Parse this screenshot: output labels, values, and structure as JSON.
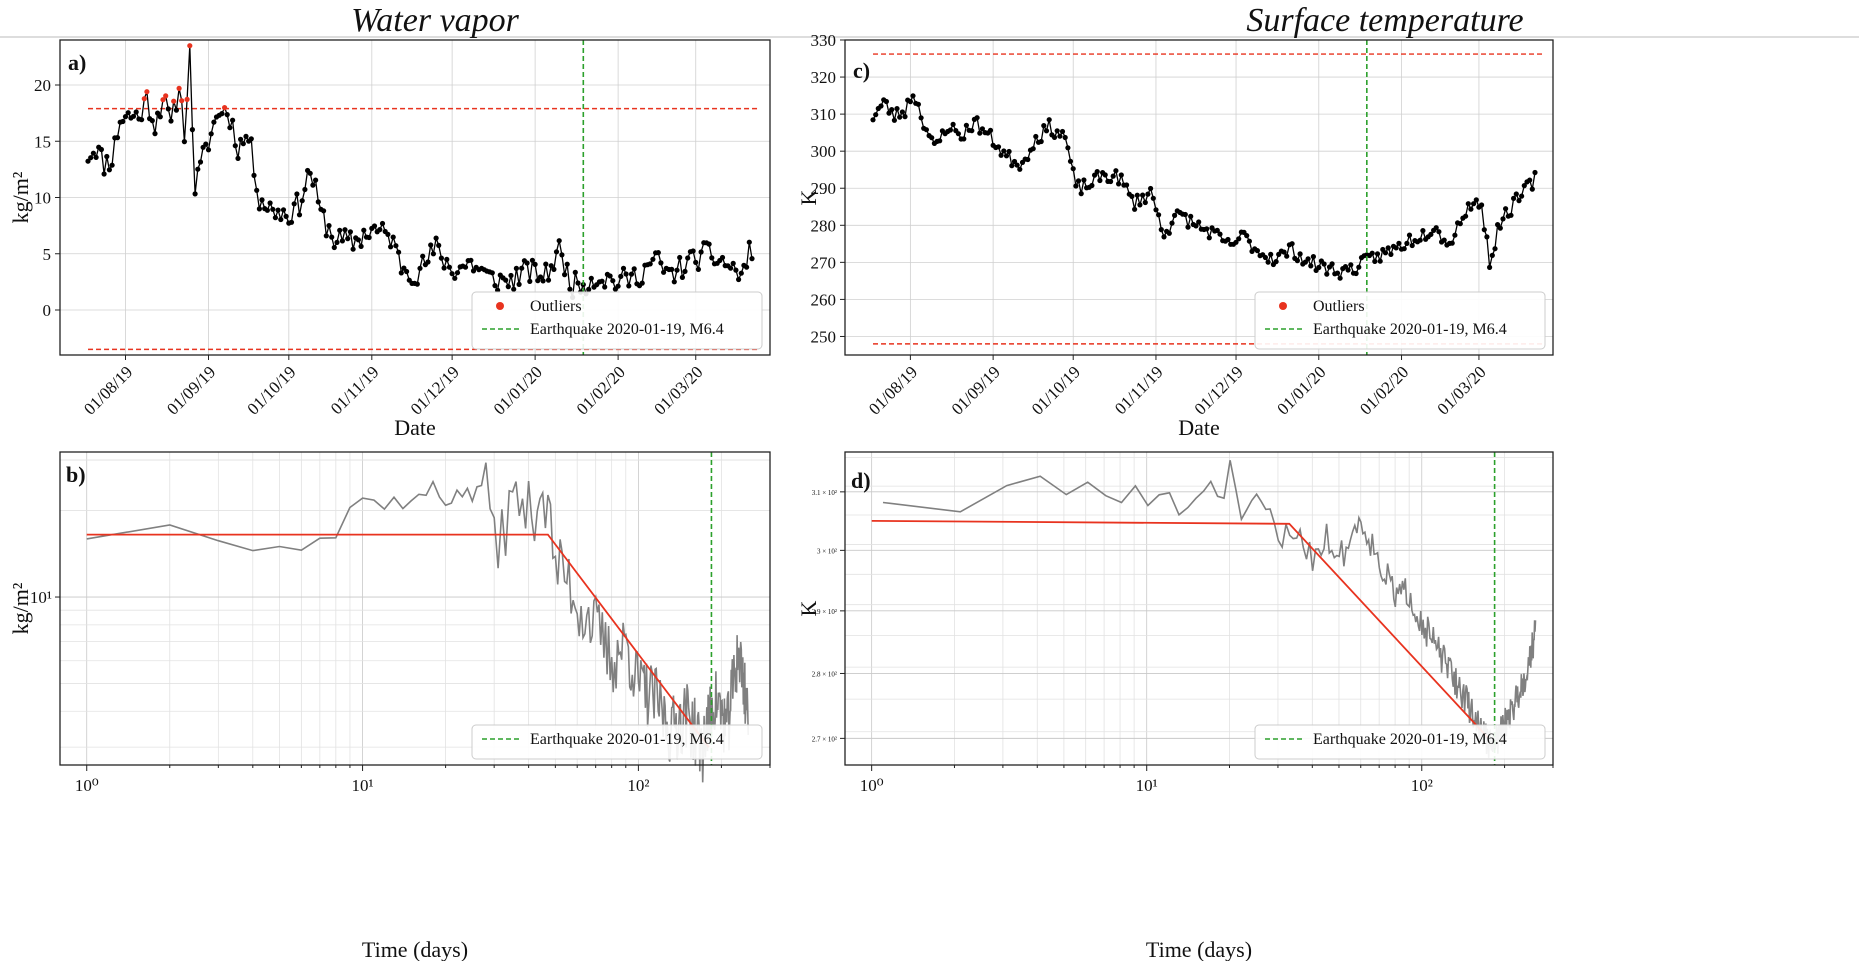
{
  "figure": {
    "titles": {
      "left": "Water vapor",
      "right": "Surface temperature"
    },
    "legend": {
      "outliers": "Outliers",
      "earthquake": "Earthquake 2020-01-19, M6.4"
    },
    "colors": {
      "series": "#000000",
      "loglog": "#808080",
      "threshold": "#e8331f",
      "fit": "#e8331f",
      "quake": "#2ca02c",
      "grid": "#d0d0d0"
    }
  },
  "chart_data": [
    {
      "id": "a",
      "panel_label": "a)",
      "type": "line",
      "title": "Water vapor",
      "xlabel": "Date",
      "ylabel": "kg/m²",
      "x_range": [
        "2019-07-15",
        "2020-03-25"
      ],
      "ylim": [
        -4,
        24
      ],
      "yticks": [
        0,
        5,
        10,
        15,
        20
      ],
      "ytick_labels": [
        "0",
        "5",
        "10",
        "15",
        "20"
      ],
      "xtick_dates": [
        "2019-08-01",
        "2019-09-01",
        "2019-10-01",
        "2019-11-01",
        "2019-12-01",
        "2020-01-01",
        "2020-02-01",
        "2020-03-01"
      ],
      "xtick_labels": [
        "01/08/19",
        "01/09/19",
        "01/10/19",
        "01/11/19",
        "01/12/19",
        "01/01/20",
        "01/02/20",
        "01/03/20"
      ],
      "threshold_upper": 17.9,
      "threshold_lower": -3.5,
      "quake_date": "2020-01-19",
      "keypoints": [
        [
          "2019-07-18",
          13.8
        ],
        [
          "2019-07-21",
          14.5
        ],
        [
          "2019-07-24",
          13.0
        ],
        [
          "2019-07-27",
          13.5
        ],
        [
          "2019-07-30",
          17.0
        ],
        [
          "2019-08-03",
          17.3
        ],
        [
          "2019-08-06",
          17.2
        ],
        [
          "2019-08-09",
          18.8
        ],
        [
          "2019-08-12",
          16.5
        ],
        [
          "2019-08-15",
          19.0
        ],
        [
          "2019-08-18",
          16.3
        ],
        [
          "2019-08-21",
          20.0
        ],
        [
          "2019-08-23",
          16.0
        ],
        [
          "2019-08-25",
          22.7
        ],
        [
          "2019-08-27",
          10.8
        ],
        [
          "2019-08-30",
          13.5
        ],
        [
          "2019-09-03",
          16.5
        ],
        [
          "2019-09-06",
          18.0
        ],
        [
          "2019-09-09",
          17.2
        ],
        [
          "2019-09-12",
          14.5
        ],
        [
          "2019-09-16",
          15.5
        ],
        [
          "2019-09-20",
          10.0
        ],
        [
          "2019-09-24",
          9.0
        ],
        [
          "2019-10-01",
          8.5
        ],
        [
          "2019-10-05",
          9.5
        ],
        [
          "2019-10-09",
          12.5
        ],
        [
          "2019-10-13",
          8.5
        ],
        [
          "2019-10-18",
          6.3
        ],
        [
          "2019-10-25",
          6.0
        ],
        [
          "2019-11-01",
          7.2
        ],
        [
          "2019-11-08",
          6.5
        ],
        [
          "2019-11-12",
          4.0
        ],
        [
          "2019-11-18",
          3.2
        ],
        [
          "2019-11-25",
          5.5
        ],
        [
          "2019-12-01",
          3.5
        ],
        [
          "2019-12-08",
          4.2
        ],
        [
          "2019-12-15",
          2.8
        ],
        [
          "2019-12-22",
          2.5
        ],
        [
          "2019-12-29",
          3.5
        ],
        [
          "2020-01-05",
          3.0
        ],
        [
          "2020-01-10",
          5.3
        ],
        [
          "2020-01-15",
          2.2
        ],
        [
          "2020-01-20",
          2.5
        ],
        [
          "2020-01-25",
          3.0
        ],
        [
          "2020-02-01",
          2.5
        ],
        [
          "2020-02-08",
          3.0
        ],
        [
          "2020-02-15",
          4.5
        ],
        [
          "2020-02-20",
          3.0
        ],
        [
          "2020-02-27",
          4.2
        ],
        [
          "2020-03-05",
          5.0
        ],
        [
          "2020-03-12",
          4.2
        ],
        [
          "2020-03-18",
          3.0
        ],
        [
          "2020-03-22",
          5.6
        ]
      ]
    },
    {
      "id": "c",
      "panel_label": "c)",
      "type": "line",
      "title": "Surface temperature",
      "xlabel": "Date",
      "ylabel": "K",
      "x_range": [
        "2019-07-15",
        "2020-03-25"
      ],
      "ylim": [
        245,
        330
      ],
      "yticks": [
        250,
        260,
        270,
        280,
        290,
        300,
        310,
        320,
        330
      ],
      "ytick_labels": [
        "250",
        "260",
        "270",
        "280",
        "290",
        "300",
        "310",
        "320",
        "330"
      ],
      "xtick_dates": [
        "2019-08-01",
        "2019-09-01",
        "2019-10-01",
        "2019-11-01",
        "2019-12-01",
        "2020-01-01",
        "2020-02-01",
        "2020-03-01"
      ],
      "xtick_labels": [
        "01/08/19",
        "01/09/19",
        "01/10/19",
        "01/11/19",
        "01/12/19",
        "01/01/20",
        "01/02/20",
        "01/03/20"
      ],
      "threshold_upper": 326.2,
      "threshold_lower": 248.0,
      "quake_date": "2020-01-19",
      "keypoints": [
        [
          "2019-07-18",
          309.5
        ],
        [
          "2019-07-22",
          313.0
        ],
        [
          "2019-07-26",
          309.5
        ],
        [
          "2019-07-30",
          311.0
        ],
        [
          "2019-08-02",
          316.0
        ],
        [
          "2019-08-06",
          308.0
        ],
        [
          "2019-08-10",
          300.5
        ],
        [
          "2019-08-15",
          307.0
        ],
        [
          "2019-08-20",
          304.0
        ],
        [
          "2019-08-25",
          308.0
        ],
        [
          "2019-09-01",
          303.0
        ],
        [
          "2019-09-06",
          298.5
        ],
        [
          "2019-09-12",
          296.5
        ],
        [
          "2019-09-16",
          302.5
        ],
        [
          "2019-09-22",
          306.5
        ],
        [
          "2019-09-28",
          304.0
        ],
        [
          "2019-10-02",
          290.0
        ],
        [
          "2019-10-06",
          290.5
        ],
        [
          "2019-10-12",
          293.5
        ],
        [
          "2019-10-18",
          293.0
        ],
        [
          "2019-10-24",
          286.0
        ],
        [
          "2019-10-30",
          289.0
        ],
        [
          "2019-11-04",
          278.0
        ],
        [
          "2019-11-10",
          283.0
        ],
        [
          "2019-11-16",
          280.0
        ],
        [
          "2019-11-22",
          278.0
        ],
        [
          "2019-11-28",
          274.5
        ],
        [
          "2019-12-04",
          277.0
        ],
        [
          "2019-12-10",
          272.5
        ],
        [
          "2019-12-16",
          271.0
        ],
        [
          "2019-12-22",
          273.5
        ],
        [
          "2019-12-28",
          270.0
        ],
        [
          "2020-01-04",
          268.5
        ],
        [
          "2020-01-10",
          267.5
        ],
        [
          "2020-01-16",
          269.0
        ],
        [
          "2020-01-22",
          271.5
        ],
        [
          "2020-01-28",
          273.0
        ],
        [
          "2020-02-04",
          276.0
        ],
        [
          "2020-02-10",
          278.0
        ],
        [
          "2020-02-14",
          280.5
        ],
        [
          "2020-02-18",
          274.0
        ],
        [
          "2020-02-22",
          280.0
        ],
        [
          "2020-02-26",
          285.0
        ],
        [
          "2020-03-02",
          286.0
        ],
        [
          "2020-03-05",
          270.0
        ],
        [
          "2020-03-09",
          281.0
        ],
        [
          "2020-03-15",
          286.5
        ],
        [
          "2020-03-22",
          292.5
        ]
      ]
    },
    {
      "id": "b",
      "panel_label": "b)",
      "type": "line",
      "scale": "log-log",
      "xlabel": "Time (days)",
      "ylabel": "kg/m²",
      "xlim": [
        0.8,
        300
      ],
      "xticks": [
        1,
        10,
        100
      ],
      "xtick_labels": [
        "10⁰",
        "10¹",
        "10²"
      ],
      "ylim": [
        2.6,
        32
      ],
      "yticks": [
        10
      ],
      "ytick_labels": [
        "10¹"
      ],
      "quake_day": 184,
      "fit": [
        [
          1,
          16.5
        ],
        [
          47,
          16.5
        ],
        [
          180,
          3.0
        ]
      ],
      "keypoints": [
        [
          1,
          16.5
        ],
        [
          2,
          17.5
        ],
        [
          3,
          16.5
        ],
        [
          4,
          15.5
        ],
        [
          5,
          16.0
        ],
        [
          6,
          15.0
        ],
        [
          7,
          16.5
        ],
        [
          8,
          16.0
        ],
        [
          9,
          21.0
        ],
        [
          10,
          21.5
        ],
        [
          12,
          21.5
        ],
        [
          14,
          21.5
        ],
        [
          16,
          22.0
        ],
        [
          18,
          24.0
        ],
        [
          20,
          21.0
        ],
        [
          22,
          24.0
        ],
        [
          25,
          22.0
        ],
        [
          28,
          27.5
        ],
        [
          30,
          15.0
        ],
        [
          33,
          19.0
        ],
        [
          36,
          22.0
        ],
        [
          40,
          20.0
        ],
        [
          45,
          24.0
        ],
        [
          50,
          13.0
        ],
        [
          55,
          12.0
        ],
        [
          60,
          9.5
        ],
        [
          70,
          8.0
        ],
        [
          80,
          6.0
        ],
        [
          90,
          7.0
        ],
        [
          100,
          5.0
        ],
        [
          115,
          4.5
        ],
        [
          130,
          3.5
        ],
        [
          150,
          4.0
        ],
        [
          170,
          3.0
        ],
        [
          190,
          4.5
        ],
        [
          210,
          3.5
        ],
        [
          230,
          6.5
        ],
        [
          250,
          4.0
        ]
      ]
    },
    {
      "id": "d",
      "panel_label": "d)",
      "type": "line",
      "scale": "log-log",
      "xlabel": "Time (days)",
      "ylabel": "K",
      "xlim": [
        0.8,
        300
      ],
      "xticks": [
        1,
        10,
        100
      ],
      "xtick_labels": [
        "10⁰",
        "10¹",
        "10²"
      ],
      "ylim": [
        266,
        317
      ],
      "yticks": [
        270,
        280,
        290,
        300,
        310
      ],
      "ytick_labels": [
        "2.7 × 10²",
        "2.8 × 10²",
        "2.9 × 10²",
        "3 × 10²",
        "3.1 × 10²"
      ],
      "quake_day": 184,
      "fit": [
        [
          1,
          305.0
        ],
        [
          33,
          304.5
        ],
        [
          175,
          270.0
        ]
      ],
      "keypoints": [
        [
          1.1,
          308.5
        ],
        [
          2,
          305.5
        ],
        [
          3,
          310.5
        ],
        [
          4,
          313.0
        ],
        [
          5,
          309.5
        ],
        [
          6,
          311.5
        ],
        [
          8,
          308.0
        ],
        [
          9,
          311.5
        ],
        [
          10,
          307.5
        ],
        [
          12,
          310.0
        ],
        [
          13,
          306.0
        ],
        [
          15,
          308.5
        ],
        [
          17,
          312.0
        ],
        [
          19,
          308.0
        ],
        [
          20,
          315.5
        ],
        [
          22,
          305.5
        ],
        [
          25,
          309.0
        ],
        [
          28,
          306.0
        ],
        [
          30,
          301.0
        ],
        [
          35,
          303.5
        ],
        [
          40,
          299.0
        ],
        [
          45,
          302.5
        ],
        [
          50,
          298.5
        ],
        [
          55,
          302.0
        ],
        [
          60,
          305.5
        ],
        [
          70,
          298.0
        ],
        [
          80,
          292.5
        ],
        [
          90,
          293.0
        ],
        [
          100,
          288.0
        ],
        [
          120,
          282.0
        ],
        [
          140,
          277.0
        ],
        [
          160,
          272.0
        ],
        [
          180,
          268.5
        ],
        [
          200,
          272.0
        ],
        [
          220,
          276.0
        ],
        [
          240,
          280.0
        ],
        [
          260,
          287.0
        ]
      ]
    }
  ]
}
